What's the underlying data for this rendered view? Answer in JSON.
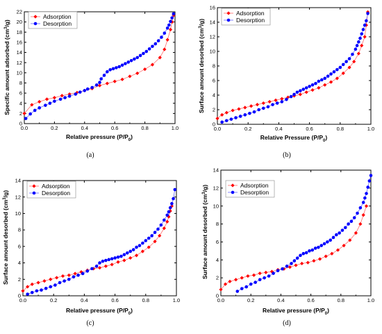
{
  "colors": {
    "adsorption": "#ff0000",
    "desorption": "#0000ff",
    "adsorption_line": "#ff6b6b",
    "desorption_line": "#6666ff"
  },
  "chart_data": [
    {
      "panel": "(a)",
      "type": "scatter",
      "xlabel": "Relative pressure (P/P0)",
      "ylabel": "Specific amount adsorbed (cm³/g)",
      "xlim": [
        0,
        1.0
      ],
      "ylim": [
        0,
        22
      ],
      "xticks": [
        "0.0",
        "0.2",
        "0.4",
        "0.6",
        "0.8",
        "1.0"
      ],
      "yticks": [
        "0",
        "2",
        "4",
        "6",
        "8",
        "10",
        "12",
        "14",
        "16",
        "18",
        "20",
        "22"
      ],
      "legend": "top-left",
      "series": [
        {
          "name": "Adsorption",
          "marker": "diamond",
          "x": [
            0.0,
            0.05,
            0.1,
            0.15,
            0.2,
            0.25,
            0.3,
            0.35,
            0.4,
            0.45,
            0.5,
            0.55,
            0.6,
            0.65,
            0.7,
            0.75,
            0.8,
            0.85,
            0.9,
            0.93,
            0.95,
            0.97,
            0.98,
            0.99
          ],
          "y": [
            2.0,
            3.7,
            4.3,
            4.8,
            5.1,
            5.5,
            5.8,
            6.1,
            6.5,
            6.9,
            7.5,
            7.9,
            8.3,
            8.7,
            9.3,
            9.9,
            10.7,
            11.6,
            13.0,
            14.6,
            16.5,
            18.5,
            20.0,
            21.3
          ]
        },
        {
          "name": "Desorption",
          "marker": "circle",
          "x": [
            0.99,
            0.98,
            0.97,
            0.96,
            0.95,
            0.93,
            0.91,
            0.89,
            0.87,
            0.85,
            0.83,
            0.81,
            0.79,
            0.77,
            0.75,
            0.73,
            0.71,
            0.69,
            0.67,
            0.65,
            0.63,
            0.61,
            0.59,
            0.57,
            0.55,
            0.53,
            0.51,
            0.5,
            0.48,
            0.45,
            0.42,
            0.4,
            0.37,
            0.34,
            0.3,
            0.27,
            0.24,
            0.2,
            0.17,
            0.14,
            0.1,
            0.07,
            0.04,
            0.01
          ],
          "y": [
            21.6,
            20.8,
            20.1,
            19.4,
            18.8,
            17.8,
            17.0,
            16.3,
            15.7,
            15.2,
            14.7,
            14.2,
            13.8,
            13.4,
            13.0,
            12.7,
            12.4,
            12.1,
            11.8,
            11.5,
            11.2,
            11.0,
            10.8,
            10.6,
            10.2,
            9.5,
            8.8,
            8.1,
            7.6,
            7.1,
            6.8,
            6.5,
            6.2,
            5.8,
            5.4,
            5.1,
            4.8,
            4.4,
            4.0,
            3.6,
            3.1,
            2.6,
            1.9,
            1.0
          ]
        }
      ]
    },
    {
      "panel": "(b)",
      "type": "scatter",
      "xlabel": "Relative Pressure (P/P0)",
      "ylabel": "Surface amount desorbed (cm³/g)",
      "xlim": [
        0,
        1.0
      ],
      "ylim": [
        0,
        16
      ],
      "xticks": [
        "0.0",
        "0.2",
        "0.4",
        "0.6",
        "0.8",
        "1.0"
      ],
      "yticks": [
        "0",
        "2",
        "4",
        "6",
        "8",
        "10",
        "12",
        "14",
        "16"
      ],
      "legend": "top-left",
      "series": [
        {
          "name": "Adsorption",
          "marker": "diamond",
          "x": [
            0.0,
            0.03,
            0.06,
            0.1,
            0.14,
            0.18,
            0.22,
            0.26,
            0.3,
            0.34,
            0.38,
            0.42,
            0.46,
            0.5,
            0.54,
            0.58,
            0.62,
            0.66,
            0.7,
            0.74,
            0.78,
            0.82,
            0.86,
            0.89,
            0.92,
            0.94,
            0.96,
            0.97,
            0.98
          ],
          "y": [
            0.8,
            1.3,
            1.6,
            1.9,
            2.1,
            2.3,
            2.5,
            2.7,
            2.9,
            3.1,
            3.3,
            3.5,
            3.7,
            3.9,
            4.1,
            4.4,
            4.7,
            5.0,
            5.4,
            5.8,
            6.3,
            7.0,
            7.8,
            8.6,
            9.7,
            10.8,
            12.0,
            13.6,
            15.4
          ]
        },
        {
          "name": "Desorption",
          "marker": "circle",
          "x": [
            0.98,
            0.97,
            0.96,
            0.95,
            0.94,
            0.93,
            0.92,
            0.91,
            0.9,
            0.88,
            0.86,
            0.84,
            0.82,
            0.8,
            0.78,
            0.76,
            0.74,
            0.72,
            0.7,
            0.68,
            0.66,
            0.64,
            0.62,
            0.6,
            0.58,
            0.56,
            0.54,
            0.52,
            0.5,
            0.48,
            0.45,
            0.42,
            0.39,
            0.36,
            0.33,
            0.3,
            0.27,
            0.24,
            0.21,
            0.18,
            0.15,
            0.12,
            0.09,
            0.06,
            0.03
          ],
          "y": [
            15.2,
            14.2,
            13.6,
            13.0,
            12.4,
            11.8,
            11.3,
            10.8,
            10.3,
            9.6,
            9.0,
            8.6,
            8.2,
            7.8,
            7.5,
            7.2,
            6.9,
            6.6,
            6.3,
            6.1,
            5.9,
            5.6,
            5.4,
            5.2,
            5.0,
            4.8,
            4.6,
            4.4,
            4.1,
            3.8,
            3.4,
            3.1,
            2.9,
            2.7,
            2.4,
            2.2,
            2.0,
            1.7,
            1.5,
            1.3,
            1.1,
            0.9,
            0.7,
            0.5,
            0.3
          ]
        }
      ]
    },
    {
      "panel": "(c)",
      "type": "scatter",
      "xlabel": "Relative pressure (P/P0)",
      "ylabel": "Surface amount desorbed (cm³/g)",
      "xlim": [
        0,
        1.0
      ],
      "ylim": [
        0,
        14
      ],
      "xticks": [
        "0.0",
        "0.2",
        "0.4",
        "0.6",
        "0.8",
        "1.0"
      ],
      "yticks": [
        "0",
        "2",
        "4",
        "6",
        "8",
        "10",
        "12",
        "14"
      ],
      "legend": "top-left",
      "series": [
        {
          "name": "Adsorption",
          "marker": "diamond",
          "x": [
            0.0,
            0.03,
            0.06,
            0.1,
            0.14,
            0.18,
            0.22,
            0.26,
            0.3,
            0.34,
            0.38,
            0.42,
            0.46,
            0.5,
            0.54,
            0.58,
            0.62,
            0.66,
            0.7,
            0.74,
            0.78,
            0.82,
            0.86,
            0.89,
            0.92,
            0.94,
            0.95,
            0.96,
            0.97
          ],
          "y": [
            0.6,
            1.1,
            1.4,
            1.6,
            1.8,
            2.0,
            2.2,
            2.4,
            2.5,
            2.7,
            2.9,
            3.1,
            3.3,
            3.4,
            3.6,
            3.8,
            4.1,
            4.3,
            4.6,
            4.9,
            5.4,
            5.9,
            6.6,
            7.3,
            8.2,
            9.0,
            9.6,
            10.3,
            10.9
          ]
        },
        {
          "name": "Desorption",
          "marker": "circle",
          "x": [
            0.99,
            0.98,
            0.97,
            0.96,
            0.95,
            0.94,
            0.92,
            0.9,
            0.88,
            0.86,
            0.84,
            0.82,
            0.8,
            0.78,
            0.76,
            0.74,
            0.72,
            0.7,
            0.68,
            0.66,
            0.64,
            0.62,
            0.6,
            0.58,
            0.56,
            0.54,
            0.52,
            0.5,
            0.48,
            0.45,
            0.42,
            0.39,
            0.36,
            0.33,
            0.3,
            0.27,
            0.24,
            0.21,
            0.18,
            0.15,
            0.12,
            0.09,
            0.06,
            0.03
          ],
          "y": [
            12.9,
            11.8,
            11.2,
            10.7,
            10.2,
            9.8,
            9.2,
            8.6,
            8.1,
            7.7,
            7.3,
            7.0,
            6.7,
            6.4,
            6.1,
            5.9,
            5.6,
            5.4,
            5.2,
            5.0,
            4.8,
            4.7,
            4.6,
            4.5,
            4.4,
            4.3,
            4.2,
            4.0,
            3.6,
            3.3,
            3.0,
            2.7,
            2.5,
            2.3,
            2.0,
            1.8,
            1.6,
            1.3,
            1.1,
            0.9,
            0.7,
            0.6,
            0.4,
            0.2
          ]
        }
      ]
    },
    {
      "panel": "(d)",
      "type": "scatter",
      "xlabel": "Relative pressure (P/P0)",
      "ylabel": "Surface amount desorbed (cm³/g)",
      "xlim": [
        0,
        1.0
      ],
      "ylim": [
        0,
        14
      ],
      "xticks": [
        "0.0",
        "0.2",
        "0.4",
        "0.6",
        "0.8",
        "1.0"
      ],
      "yticks": [
        "0",
        "2",
        "4",
        "6",
        "8",
        "10",
        "12",
        "14"
      ],
      "legend": "top-left",
      "series": [
        {
          "name": "Adsorption",
          "marker": "diamond",
          "x": [
            0.0,
            0.03,
            0.06,
            0.1,
            0.14,
            0.18,
            0.22,
            0.26,
            0.3,
            0.34,
            0.38,
            0.42,
            0.46,
            0.5,
            0.54,
            0.58,
            0.62,
            0.66,
            0.7,
            0.74,
            0.78,
            0.82,
            0.86,
            0.9,
            0.93,
            0.95,
            0.97
          ],
          "y": [
            0.7,
            1.3,
            1.6,
            1.8,
            2.0,
            2.2,
            2.3,
            2.5,
            2.6,
            2.7,
            2.9,
            3.0,
            3.2,
            3.4,
            3.6,
            3.7,
            3.9,
            4.1,
            4.4,
            4.7,
            5.1,
            5.6,
            6.2,
            7.0,
            8.0,
            9.0,
            10.0
          ]
        },
        {
          "name": "Desorption",
          "marker": "circle",
          "x": [
            1.0,
            0.99,
            0.98,
            0.97,
            0.96,
            0.95,
            0.93,
            0.91,
            0.89,
            0.87,
            0.85,
            0.83,
            0.81,
            0.79,
            0.77,
            0.75,
            0.73,
            0.71,
            0.69,
            0.67,
            0.65,
            0.63,
            0.61,
            0.59,
            0.57,
            0.55,
            0.53,
            0.51,
            0.49,
            0.47,
            0.44,
            0.41,
            0.38,
            0.35,
            0.32,
            0.29,
            0.26,
            0.23,
            0.2,
            0.17,
            0.14,
            0.11
          ],
          "y": [
            13.4,
            12.8,
            12.1,
            11.4,
            10.9,
            10.4,
            9.8,
            9.2,
            8.7,
            8.3,
            8.0,
            7.6,
            7.3,
            7.0,
            6.8,
            6.5,
            6.2,
            6.0,
            5.8,
            5.6,
            5.4,
            5.3,
            5.1,
            5.0,
            4.8,
            4.7,
            4.5,
            4.2,
            3.9,
            3.6,
            3.3,
            3.0,
            2.8,
            2.5,
            2.2,
            2.0,
            1.8,
            1.5,
            1.3,
            1.0,
            0.8,
            0.5
          ]
        }
      ]
    }
  ]
}
